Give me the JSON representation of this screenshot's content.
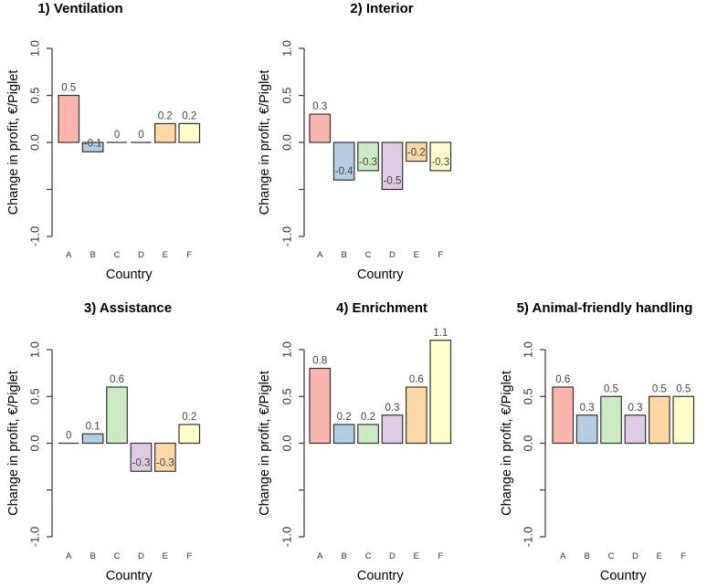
{
  "chart_data": [
    {
      "type": "bar",
      "title": "1) Ventilation",
      "xlabel": "Country",
      "ylabel": "Change in profit, €/Piglet",
      "ylim": [
        -1.0,
        1.0
      ],
      "yticks": [
        1.0,
        0.5,
        0.0,
        -0.5,
        -1.0
      ],
      "ytick_labels": [
        "1.0",
        "0.5",
        "0.0",
        "",
        "-1.0"
      ],
      "categories": [
        "A",
        "B",
        "C",
        "D",
        "E",
        "F"
      ],
      "values": [
        0.5,
        -0.1,
        0,
        0,
        0.2,
        0.2
      ],
      "value_labels": [
        "0.5",
        "-0.1",
        "0",
        "0",
        "0.2",
        "0.2"
      ],
      "colors": [
        "#FBB4AE",
        "#B3CDE3",
        "#CCEBC5",
        "#DECBE4",
        "#FED9A6",
        "#FFFFCC"
      ]
    },
    {
      "type": "bar",
      "title": "2) Interior",
      "xlabel": "Country",
      "ylabel": "Change in profit, €/Piglet",
      "ylim": [
        -1.0,
        1.0
      ],
      "yticks": [
        1.0,
        0.5,
        0.0,
        -0.5,
        -1.0
      ],
      "ytick_labels": [
        "1.0",
        "0.5",
        "0.0",
        "",
        "-1.0"
      ],
      "categories": [
        "A",
        "B",
        "C",
        "D",
        "E",
        "F"
      ],
      "values": [
        0.3,
        -0.4,
        -0.3,
        -0.5,
        -0.2,
        -0.3
      ],
      "value_labels": [
        "0.3",
        "-0.4",
        "-0.3",
        "-0.5",
        "-0.2",
        "-0.3"
      ],
      "colors": [
        "#FBB4AE",
        "#B3CDE3",
        "#CCEBC5",
        "#DECBE4",
        "#FED9A6",
        "#FFFFCC"
      ]
    },
    {
      "type": "bar",
      "title": "3) Assistance",
      "xlabel": "Country",
      "ylabel": "Change in profit, €/Piglet",
      "ylim": [
        -1.0,
        1.0
      ],
      "yticks": [
        1.0,
        0.5,
        0.0,
        -0.5,
        -1.0
      ],
      "ytick_labels": [
        "1.0",
        "0.5",
        "0.0",
        "",
        "-1.0"
      ],
      "categories": [
        "A",
        "B",
        "C",
        "D",
        "E",
        "F"
      ],
      "values": [
        0,
        0.1,
        0.6,
        -0.3,
        -0.3,
        0.2
      ],
      "value_labels": [
        "0",
        "0.1",
        "0.6",
        "-0.3",
        "-0.3",
        "0.2"
      ],
      "colors": [
        "#FBB4AE",
        "#B3CDE3",
        "#CCEBC5",
        "#DECBE4",
        "#FED9A6",
        "#FFFFCC"
      ]
    },
    {
      "type": "bar",
      "title": "4) Enrichment",
      "xlabel": "Country",
      "ylabel": "Change in profit, €/Piglet",
      "ylim": [
        -1.0,
        1.0
      ],
      "yticks": [
        1.0,
        0.5,
        0.0,
        -0.5,
        -1.0
      ],
      "ytick_labels": [
        "1.0",
        "0.5",
        "0.0",
        "",
        "-1.0"
      ],
      "categories": [
        "A",
        "B",
        "C",
        "D",
        "E",
        "F"
      ],
      "values": [
        0.8,
        0.2,
        0.2,
        0.3,
        0.6,
        1.1
      ],
      "value_labels": [
        "0.8",
        "0.2",
        "0.2",
        "0.3",
        "0.6",
        "1.1"
      ],
      "colors": [
        "#FBB4AE",
        "#B3CDE3",
        "#CCEBC5",
        "#DECBE4",
        "#FED9A6",
        "#FFFFCC"
      ]
    },
    {
      "type": "bar",
      "title": "5) Animal-friendly handling",
      "xlabel": "Country",
      "ylabel": "Change in profit, €/Piglet",
      "ylim": [
        -1.0,
        1.0
      ],
      "yticks": [
        1.0,
        0.5,
        0.0,
        -0.5,
        -1.0
      ],
      "ytick_labels": [
        "1.0",
        "0.5",
        "0.0",
        "",
        "-1.0"
      ],
      "categories": [
        "A",
        "B",
        "C",
        "D",
        "E",
        "F"
      ],
      "values": [
        0.6,
        0.3,
        0.5,
        0.3,
        0.5,
        0.5
      ],
      "value_labels": [
        "0.6",
        "0.3",
        "0.5",
        "0.3",
        "0.5",
        "0.5"
      ],
      "colors": [
        "#FBB4AE",
        "#B3CDE3",
        "#CCEBC5",
        "#DECBE4",
        "#FED9A6",
        "#FFFFCC"
      ]
    }
  ]
}
